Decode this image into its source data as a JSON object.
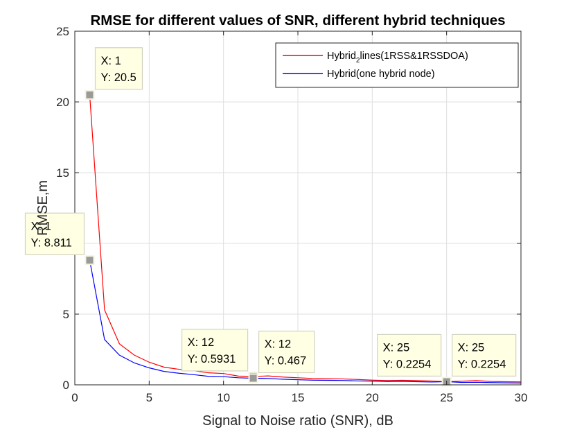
{
  "chart_data": {
    "type": "line",
    "title": "RMSE for different values of SNR, different hybrid techniques",
    "xlabel": "Signal to Noise ratio (SNR), dB",
    "ylabel": "RMSE,m",
    "xlim": [
      0,
      30
    ],
    "ylim": [
      0,
      25
    ],
    "grid": true,
    "legend_position": "top-right",
    "xticks": [
      0,
      5,
      10,
      15,
      20,
      25,
      30
    ],
    "yticks": [
      0,
      5,
      10,
      15,
      20,
      25
    ],
    "x": [
      1,
      2,
      3,
      4,
      5,
      6,
      7,
      8,
      9,
      10,
      11,
      12,
      13,
      14,
      15,
      16,
      17,
      18,
      19,
      20,
      21,
      22,
      23,
      24,
      25,
      26,
      27,
      28,
      29,
      30
    ],
    "series": [
      {
        "name": "Hybrid2lines(1RSS&1RSSDOA)",
        "legend_main": "Hybrid",
        "legend_sub": "2",
        "legend_rest": "lines(1RSS&1RSSDOA)",
        "color": "#ff0000",
        "values": [
          20.5,
          5.3,
          2.9,
          2.1,
          1.6,
          1.25,
          1.1,
          1.0,
          0.85,
          0.8,
          0.62,
          0.5931,
          0.63,
          0.55,
          0.5,
          0.45,
          0.43,
          0.42,
          0.38,
          0.33,
          0.3,
          0.32,
          0.3,
          0.27,
          0.2254,
          0.26,
          0.3,
          0.24,
          0.22,
          0.21
        ]
      },
      {
        "name": "Hybrid(one hybrid node)",
        "legend_main": "Hybrid(one hybrid node)",
        "legend_sub": "",
        "legend_rest": "",
        "color": "#0000ff",
        "values": [
          8.811,
          3.2,
          2.1,
          1.55,
          1.2,
          0.95,
          0.82,
          0.72,
          0.6,
          0.58,
          0.5,
          0.467,
          0.45,
          0.4,
          0.36,
          0.33,
          0.32,
          0.31,
          0.28,
          0.26,
          0.24,
          0.25,
          0.22,
          0.2,
          0.2254,
          0.17,
          0.18,
          0.16,
          0.14,
          0.13
        ]
      }
    ],
    "datatips": [
      {
        "x_label": "X: 1",
        "y_label": "Y: 20.5",
        "x": 1,
        "y": 20.5,
        "side": "right-up"
      },
      {
        "x_label": "X: 1",
        "y_label": "Y: 8.811",
        "x": 1,
        "y": 8.811,
        "side": "left-up"
      },
      {
        "x_label": "X: 12",
        "y_label": "Y: 0.5931",
        "x": 12,
        "y": 0.5931,
        "side": "left-up"
      },
      {
        "x_label": "X: 12",
        "y_label": "Y: 0.467",
        "x": 12,
        "y": 0.467,
        "side": "right-up"
      },
      {
        "x_label": "X: 25",
        "y_label": "Y: 0.2254",
        "x": 25,
        "y": 0.2254,
        "side": "left-up"
      },
      {
        "x_label": "X: 25",
        "y_label": "Y: 0.2254",
        "x": 25,
        "y": 0.2254,
        "side": "right-up"
      }
    ]
  }
}
